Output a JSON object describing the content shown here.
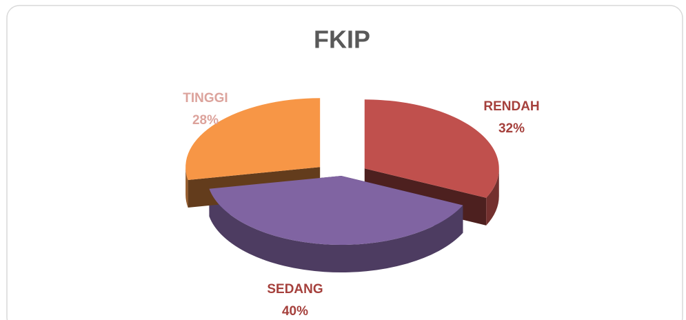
{
  "chart_data": {
    "type": "pie",
    "title": "FKIP",
    "categories": [
      "RENDAH",
      "SEDANG",
      "TINGGI"
    ],
    "values": [
      32,
      40,
      28
    ],
    "value_labels": [
      "32%",
      "40%",
      "28%"
    ],
    "colors": [
      "#c0504d",
      "#8064a2",
      "#f79646"
    ],
    "label_colors": [
      "#a5403c",
      "#a5403c",
      "#dca39c"
    ]
  }
}
